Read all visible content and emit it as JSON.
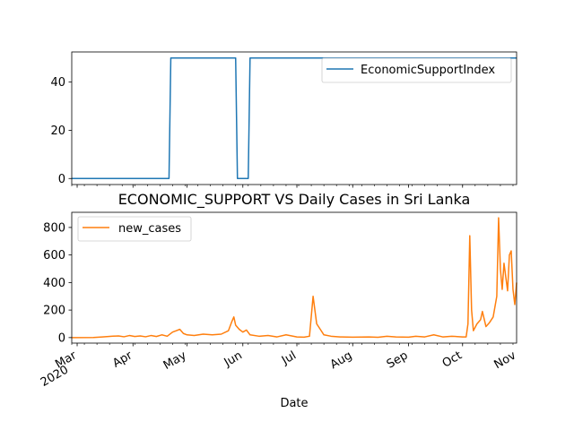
{
  "chart_data": [
    {
      "type": "line",
      "title": "",
      "xlabel": "",
      "ylabel": "",
      "x_range": [
        "2020-02-27",
        "2020-10-31"
      ],
      "ylim": [
        -2.5,
        52.5
      ],
      "y_ticks": [
        0,
        20,
        40
      ],
      "legend": "top-right",
      "grid": false,
      "series": [
        {
          "name": "EconomicSupportIndex",
          "color": "#1f77b4",
          "points": [
            [
              "2020-02-27",
              0
            ],
            [
              "2020-04-21",
              0
            ],
            [
              "2020-04-22",
              50
            ],
            [
              "2020-05-28",
              50
            ],
            [
              "2020-05-29",
              0
            ],
            [
              "2020-06-04",
              0
            ],
            [
              "2020-06-05",
              50
            ],
            [
              "2020-10-31",
              50
            ]
          ]
        }
      ]
    },
    {
      "type": "line",
      "title": "ECONOMIC_SUPPORT VS Daily Cases in Sri Lanka",
      "xlabel": "Date",
      "ylabel": "",
      "x_range": [
        "2020-02-27",
        "2020-10-31"
      ],
      "ylim": [
        -40,
        910
      ],
      "y_ticks": [
        0,
        200,
        400,
        600,
        800
      ],
      "x_ticks": [
        {
          "date": "2020-03-01",
          "label": "Mar",
          "sublabel": "2020"
        },
        {
          "date": "2020-04-01",
          "label": "Apr"
        },
        {
          "date": "2020-05-01",
          "label": "May"
        },
        {
          "date": "2020-06-01",
          "label": "Jun"
        },
        {
          "date": "2020-07-01",
          "label": "Jul"
        },
        {
          "date": "2020-08-01",
          "label": "Aug"
        },
        {
          "date": "2020-09-01",
          "label": "Sep"
        },
        {
          "date": "2020-10-01",
          "label": "Oct"
        },
        {
          "date": "2020-11-01",
          "label": "Nov"
        }
      ],
      "legend": "top-left",
      "grid": false,
      "series": [
        {
          "name": "new_cases",
          "color": "#ff7f0e",
          "points": [
            [
              "2020-02-27",
              0
            ],
            [
              "2020-03-10",
              1
            ],
            [
              "2020-03-15",
              5
            ],
            [
              "2020-03-20",
              10
            ],
            [
              "2020-03-24",
              12
            ],
            [
              "2020-03-27",
              6
            ],
            [
              "2020-03-30",
              15
            ],
            [
              "2020-04-02",
              8
            ],
            [
              "2020-04-05",
              12
            ],
            [
              "2020-04-08",
              6
            ],
            [
              "2020-04-11",
              15
            ],
            [
              "2020-04-14",
              8
            ],
            [
              "2020-04-17",
              20
            ],
            [
              "2020-04-20",
              10
            ],
            [
              "2020-04-23",
              40
            ],
            [
              "2020-04-25",
              50
            ],
            [
              "2020-04-27",
              60
            ],
            [
              "2020-04-29",
              30
            ],
            [
              "2020-05-01",
              20
            ],
            [
              "2020-05-05",
              15
            ],
            [
              "2020-05-10",
              25
            ],
            [
              "2020-05-15",
              20
            ],
            [
              "2020-05-20",
              25
            ],
            [
              "2020-05-24",
              50
            ],
            [
              "2020-05-26",
              120
            ],
            [
              "2020-05-27",
              150
            ],
            [
              "2020-05-28",
              90
            ],
            [
              "2020-05-30",
              60
            ],
            [
              "2020-06-01",
              40
            ],
            [
              "2020-06-03",
              55
            ],
            [
              "2020-06-05",
              20
            ],
            [
              "2020-06-10",
              10
            ],
            [
              "2020-06-15",
              15
            ],
            [
              "2020-06-20",
              5
            ],
            [
              "2020-06-25",
              20
            ],
            [
              "2020-07-01",
              5
            ],
            [
              "2020-07-05",
              3
            ],
            [
              "2020-07-08",
              10
            ],
            [
              "2020-07-10",
              300
            ],
            [
              "2020-07-12",
              100
            ],
            [
              "2020-07-14",
              60
            ],
            [
              "2020-07-16",
              20
            ],
            [
              "2020-07-20",
              10
            ],
            [
              "2020-07-25",
              5
            ],
            [
              "2020-08-01",
              3
            ],
            [
              "2020-08-10",
              5
            ],
            [
              "2020-08-15",
              2
            ],
            [
              "2020-08-20",
              10
            ],
            [
              "2020-08-25",
              5
            ],
            [
              "2020-09-01",
              3
            ],
            [
              "2020-09-05",
              10
            ],
            [
              "2020-09-10",
              5
            ],
            [
              "2020-09-15",
              20
            ],
            [
              "2020-09-20",
              5
            ],
            [
              "2020-09-25",
              10
            ],
            [
              "2020-10-01",
              5
            ],
            [
              "2020-10-03",
              5
            ],
            [
              "2020-10-04",
              100
            ],
            [
              "2020-10-05",
              740
            ],
            [
              "2020-10-06",
              200
            ],
            [
              "2020-10-07",
              50
            ],
            [
              "2020-10-09",
              100
            ],
            [
              "2020-10-11",
              130
            ],
            [
              "2020-10-12",
              190
            ],
            [
              "2020-10-14",
              80
            ],
            [
              "2020-10-16",
              110
            ],
            [
              "2020-10-18",
              150
            ],
            [
              "2020-10-20",
              300
            ],
            [
              "2020-10-21",
              870
            ],
            [
              "2020-10-22",
              500
            ],
            [
              "2020-10-23",
              350
            ],
            [
              "2020-10-24",
              540
            ],
            [
              "2020-10-26",
              340
            ],
            [
              "2020-10-27",
              600
            ],
            [
              "2020-10-28",
              630
            ],
            [
              "2020-10-29",
              350
            ],
            [
              "2020-10-30",
              240
            ],
            [
              "2020-10-31",
              400
            ]
          ]
        }
      ]
    }
  ]
}
